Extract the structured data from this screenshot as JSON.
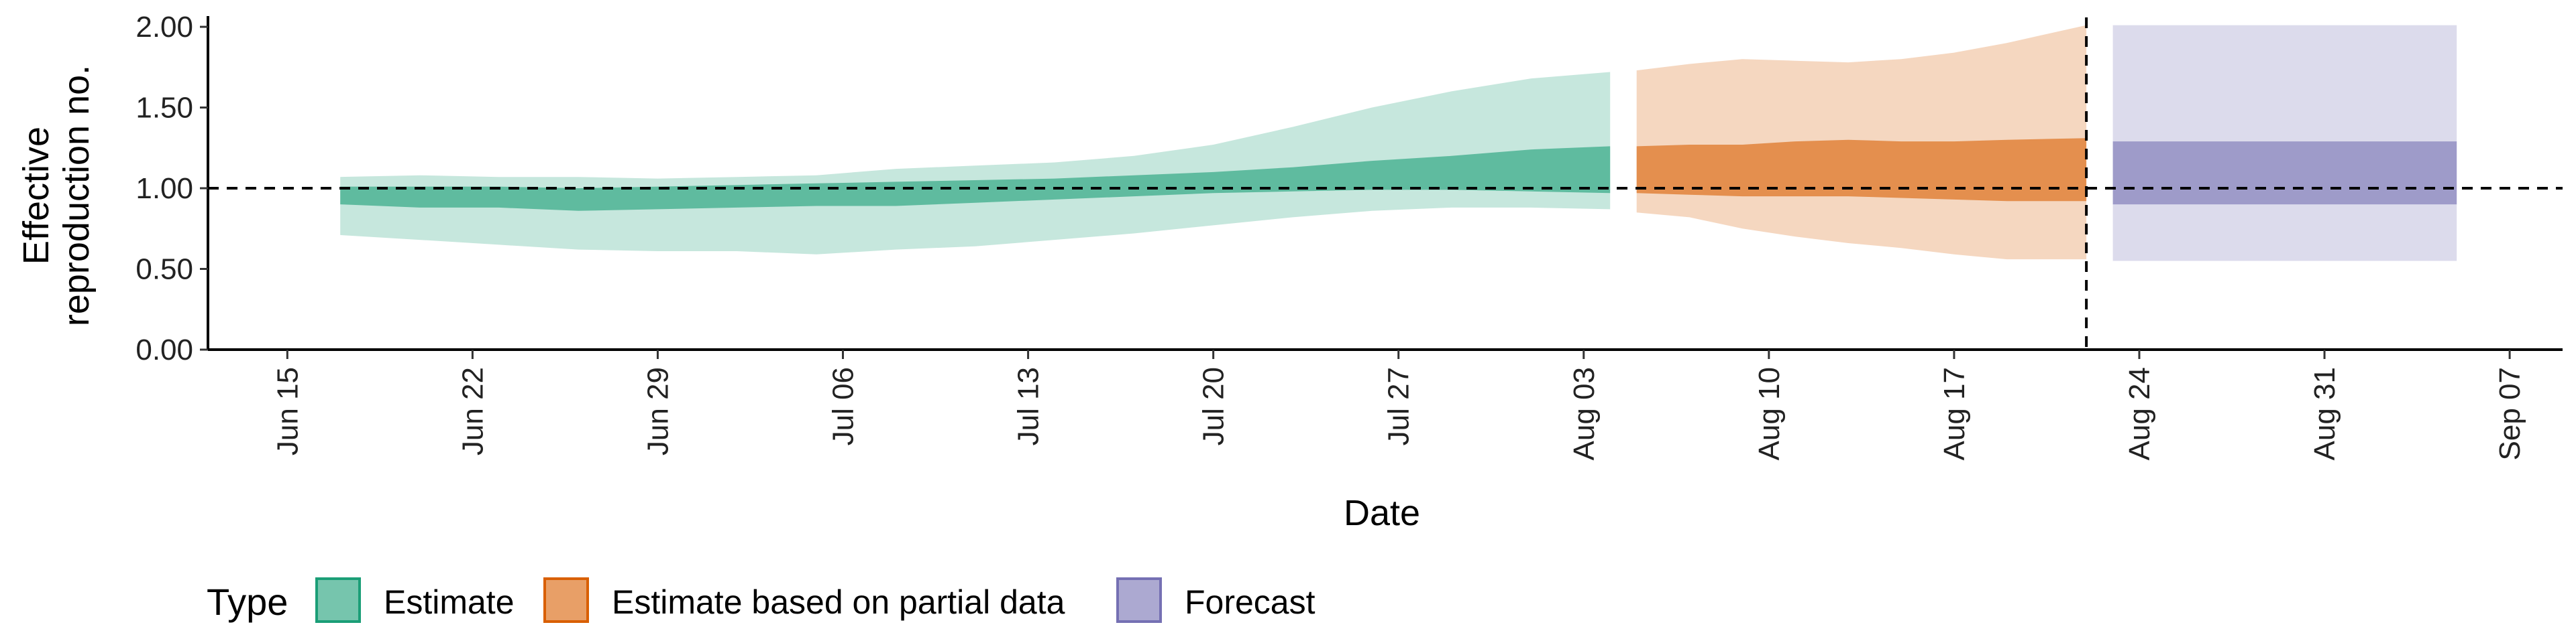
{
  "chart_data": {
    "type": "area",
    "xlabel": "Date",
    "ylabel_line1": "Effective",
    "ylabel_line2": "reproduction no.",
    "ylim": [
      0,
      2.05
    ],
    "yticks": [
      0,
      0.5,
      1.0,
      1.5,
      2.0
    ],
    "ytick_labels": [
      "0.00",
      "0.50",
      "1.00",
      "1.50",
      "2.00"
    ],
    "xlim": [
      "2020-06-12",
      "2020-09-09"
    ],
    "xticks": [
      "2020-06-15",
      "2020-06-22",
      "2020-06-29",
      "2020-07-06",
      "2020-07-13",
      "2020-07-20",
      "2020-07-27",
      "2020-08-03",
      "2020-08-10",
      "2020-08-17",
      "2020-08-24",
      "2020-08-31",
      "2020-09-07"
    ],
    "xtick_labels": [
      "Jun 15",
      "Jun 22",
      "Jun 29",
      "Jul 06",
      "Jul 13",
      "Jul 20",
      "Jul 27",
      "Aug 03",
      "Aug 10",
      "Aug 17",
      "Aug 24",
      "Aug 31",
      "Sep 07"
    ],
    "reference_line_y": 1.0,
    "vertical_line_x": "2020-08-22",
    "legend": {
      "title": "Type",
      "placement": "bottom-left",
      "entries": [
        {
          "label": "Estimate",
          "color": "#1b9e77"
        },
        {
          "label": "Estimate based on partial data",
          "color": "#d95f02"
        },
        {
          "label": "Forecast",
          "color": "#7570b3"
        }
      ]
    },
    "series": [
      {
        "name": "Estimate",
        "fill_color": "#1b9e77",
        "x": [
          "2020-06-17",
          "2020-06-20",
          "2020-06-23",
          "2020-06-26",
          "2020-06-29",
          "2020-07-02",
          "2020-07-05",
          "2020-07-08",
          "2020-07-11",
          "2020-07-14",
          "2020-07-17",
          "2020-07-20",
          "2020-07-23",
          "2020-07-26",
          "2020-07-29",
          "2020-08-01",
          "2020-08-04"
        ],
        "outer_upper": [
          1.07,
          1.08,
          1.07,
          1.07,
          1.06,
          1.07,
          1.08,
          1.12,
          1.14,
          1.16,
          1.2,
          1.27,
          1.38,
          1.5,
          1.6,
          1.68,
          1.72
        ],
        "outer_lower": [
          0.71,
          0.68,
          0.65,
          0.62,
          0.61,
          0.61,
          0.59,
          0.62,
          0.64,
          0.68,
          0.72,
          0.77,
          0.82,
          0.86,
          0.88,
          0.88,
          0.87
        ],
        "inner_upper": [
          1.01,
          1.01,
          1.01,
          1.0,
          1.01,
          1.02,
          1.03,
          1.04,
          1.05,
          1.06,
          1.08,
          1.1,
          1.13,
          1.17,
          1.2,
          1.24,
          1.26
        ],
        "inner_lower": [
          0.9,
          0.88,
          0.88,
          0.86,
          0.87,
          0.88,
          0.89,
          0.89,
          0.91,
          0.93,
          0.95,
          0.97,
          0.98,
          0.99,
          0.99,
          0.98,
          0.97
        ]
      },
      {
        "name": "Estimate based on partial data",
        "fill_color": "#d95f02",
        "x": [
          "2020-08-05",
          "2020-08-07",
          "2020-08-09",
          "2020-08-11",
          "2020-08-13",
          "2020-08-15",
          "2020-08-17",
          "2020-08-19",
          "2020-08-22"
        ],
        "outer_upper": [
          1.73,
          1.77,
          1.8,
          1.79,
          1.78,
          1.8,
          1.84,
          1.9,
          2.01
        ],
        "outer_lower": [
          0.85,
          0.82,
          0.75,
          0.7,
          0.66,
          0.63,
          0.59,
          0.56,
          0.56
        ],
        "inner_upper": [
          1.26,
          1.27,
          1.27,
          1.29,
          1.3,
          1.29,
          1.29,
          1.3,
          1.31
        ],
        "inner_lower": [
          0.97,
          0.96,
          0.95,
          0.95,
          0.95,
          0.94,
          0.93,
          0.92,
          0.92
        ]
      },
      {
        "name": "Forecast",
        "fill_color": "#7570b3",
        "x": [
          "2020-08-23",
          "2020-09-05"
        ],
        "outer_upper": [
          2.01,
          2.01
        ],
        "outer_lower": [
          0.55,
          0.55
        ],
        "inner_upper": [
          1.29,
          1.29
        ],
        "inner_lower": [
          0.9,
          0.9
        ]
      }
    ]
  }
}
